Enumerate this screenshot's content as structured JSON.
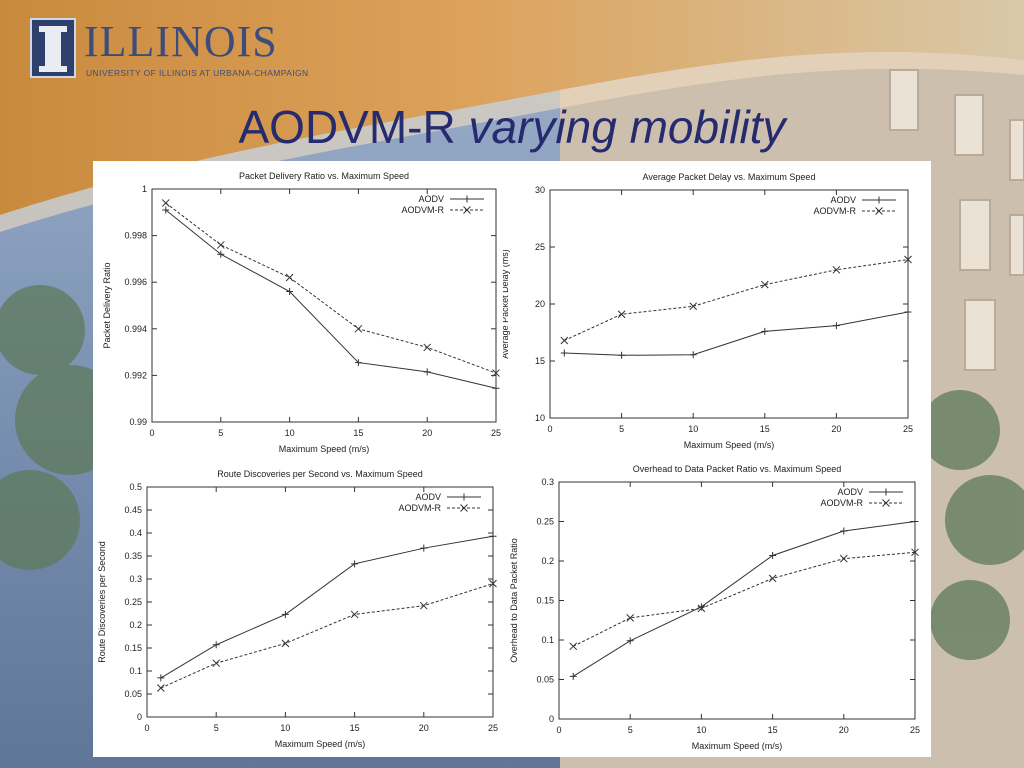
{
  "header": {
    "logo_word": "ILLINOIS",
    "logo_sub": "UNIVERSITY OF ILLINOIS AT URBANA-CHAMPAIGN",
    "title_main": "AODVM-R",
    "title_italic": "varying mobility"
  },
  "colors": {
    "title": "#262a6e",
    "logo": "#3d4d7b",
    "line": "#333333"
  },
  "chart_data": [
    {
      "type": "line",
      "title": "Packet Delivery Ratio vs. Maximum Speed",
      "xlabel": "Maximum Speed (m/s)",
      "ylabel": "Packet Delivery Ratio",
      "xlim": [
        0,
        25
      ],
      "ylim": [
        0.99,
        1
      ],
      "xticks": [
        0,
        5,
        10,
        15,
        20,
        25
      ],
      "xtick_labels": [
        "0",
        "5",
        "10",
        "15",
        "20",
        "25"
      ],
      "yticks": [
        0.99,
        0.992,
        0.994,
        0.996,
        0.998,
        1
      ],
      "ytick_labels": [
        "0.99",
        "0.992",
        "0.994",
        "0.996",
        "0.998",
        "1"
      ],
      "legend": "top-right",
      "grid": false,
      "series": [
        {
          "name": "AODV",
          "marker": "+",
          "dashed": false,
          "x": [
            1,
            5,
            10,
            15,
            20,
            25
          ],
          "y": [
            0.9991,
            0.9972,
            0.9956,
            0.99255,
            0.99215,
            0.99145
          ]
        },
        {
          "name": "AODVM-R",
          "marker": "x",
          "dashed": true,
          "x": [
            1,
            5,
            10,
            15,
            20,
            25
          ],
          "y": [
            0.9994,
            0.9976,
            0.9962,
            0.994,
            0.9932,
            0.9921
          ]
        }
      ]
    },
    {
      "type": "line",
      "title": "Average Packet Delay vs. Maximum Speed",
      "xlabel": "Maximum Speed (m/s)",
      "ylabel": "Average Packet Delay (ms)",
      "xlim": [
        0,
        25
      ],
      "ylim": [
        10,
        30
      ],
      "xticks": [
        0,
        5,
        10,
        15,
        20,
        25
      ],
      "xtick_labels": [
        "0",
        "5",
        "10",
        "15",
        "20",
        "25"
      ],
      "yticks": [
        10,
        15,
        20,
        25,
        30
      ],
      "ytick_labels": [
        "10",
        "15",
        "20",
        "25",
        "30"
      ],
      "legend": "top-right",
      "grid": false,
      "series": [
        {
          "name": "AODV",
          "marker": "+",
          "dashed": false,
          "x": [
            1,
            5,
            10,
            15,
            20,
            25
          ],
          "y": [
            15.7,
            15.5,
            15.55,
            17.6,
            18.1,
            19.3
          ]
        },
        {
          "name": "AODVM-R",
          "marker": "x",
          "dashed": true,
          "x": [
            1,
            5,
            10,
            15,
            20,
            25
          ],
          "y": [
            16.8,
            19.1,
            19.8,
            21.7,
            23.0,
            23.9
          ]
        }
      ]
    },
    {
      "type": "line",
      "title": "Route Discoveries per Second vs. Maximum Speed",
      "xlabel": "Maximum Speed (m/s)",
      "ylabel": "Route Discoveries per Second",
      "xlim": [
        0,
        25
      ],
      "ylim": [
        0,
        0.5
      ],
      "xticks": [
        0,
        5,
        10,
        15,
        20,
        25
      ],
      "xtick_labels": [
        "0",
        "5",
        "10",
        "15",
        "20",
        "25"
      ],
      "yticks": [
        0,
        0.05,
        0.1,
        0.15,
        0.2,
        0.25,
        0.3,
        0.35,
        0.4,
        0.45,
        0.5
      ],
      "ytick_labels": [
        "0",
        "0.05",
        "0.1",
        "0.15",
        "0.2",
        "0.25",
        "0.3",
        "0.35",
        "0.4",
        "0.45",
        "0.5"
      ],
      "legend": "top-right",
      "grid": false,
      "series": [
        {
          "name": "AODV",
          "marker": "+",
          "dashed": false,
          "x": [
            1,
            5,
            10,
            15,
            20,
            25
          ],
          "y": [
            0.085,
            0.157,
            0.223,
            0.333,
            0.367,
            0.393
          ]
        },
        {
          "name": "AODVM-R",
          "marker": "x",
          "dashed": true,
          "x": [
            1,
            5,
            10,
            15,
            20,
            25
          ],
          "y": [
            0.063,
            0.117,
            0.16,
            0.223,
            0.242,
            0.29
          ]
        }
      ]
    },
    {
      "type": "line",
      "title": "Overhead to Data Packet Ratio vs. Maximum Speed",
      "xlabel": "Maximum Speed (m/s)",
      "ylabel": "Overhead to Data Packet Ratio",
      "xlim": [
        0,
        25
      ],
      "ylim": [
        0,
        0.3
      ],
      "xticks": [
        0,
        5,
        10,
        15,
        20,
        25
      ],
      "xtick_labels": [
        "0",
        "5",
        "10",
        "15",
        "20",
        "25"
      ],
      "yticks": [
        0,
        0.05,
        0.1,
        0.15,
        0.2,
        0.25,
        0.3
      ],
      "ytick_labels": [
        "0",
        "0.05",
        "0.1",
        "0.15",
        "0.2",
        "0.25",
        "0.3"
      ],
      "legend": "top-right",
      "grid": false,
      "series": [
        {
          "name": "AODV",
          "marker": "+",
          "dashed": false,
          "x": [
            1,
            5,
            10,
            15,
            20,
            25
          ],
          "y": [
            0.054,
            0.099,
            0.142,
            0.207,
            0.238,
            0.25
          ]
        },
        {
          "name": "AODVM-R",
          "marker": "x",
          "dashed": true,
          "x": [
            1,
            5,
            10,
            15,
            20,
            25
          ],
          "y": [
            0.092,
            0.128,
            0.14,
            0.178,
            0.203,
            0.211
          ]
        }
      ]
    }
  ]
}
